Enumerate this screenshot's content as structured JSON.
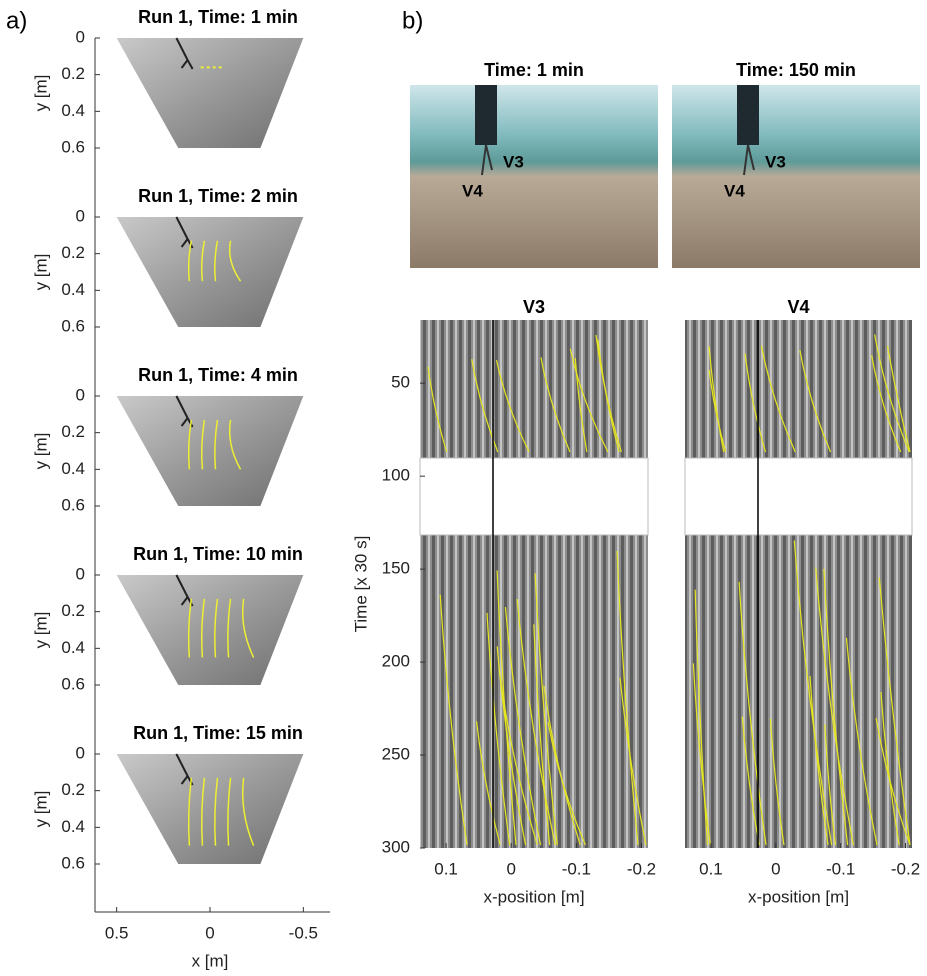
{
  "panel_a": {
    "label": "a)",
    "titles": [
      "Run 1, Time: 1 min",
      "Run 1, Time: 2 min",
      "Run 1, Time: 4 min",
      "Run 1, Time: 10 min",
      "Run 1, Time: 15 min"
    ],
    "ylabel": "y [m]",
    "ylim": [
      0,
      0.6
    ],
    "yticks": [
      0,
      0.2,
      0.4,
      0.6
    ],
    "xlabel": "x [m]",
    "xlim": [
      0.6,
      -0.6
    ],
    "xticks": [
      0.5,
      0,
      -0.5
    ]
  },
  "panel_b": {
    "label": "b)",
    "photos": [
      {
        "title": "Time: 1 min",
        "labels": [
          "V3",
          "V4"
        ]
      },
      {
        "title": "Time: 150 min",
        "labels": [
          "V3",
          "V4"
        ]
      }
    ],
    "plots": [
      {
        "title": "V3"
      },
      {
        "title": "V4"
      }
    ],
    "ylabel": "Time [x 30 s]",
    "ylim": [
      16,
      300
    ],
    "yticks": [
      50,
      100,
      150,
      200,
      250,
      300
    ],
    "xlabel": "x-position [m]",
    "xlim": [
      0.14,
      -0.21
    ],
    "xticks": [
      0.1,
      0,
      -0.1,
      -0.2
    ]
  }
}
